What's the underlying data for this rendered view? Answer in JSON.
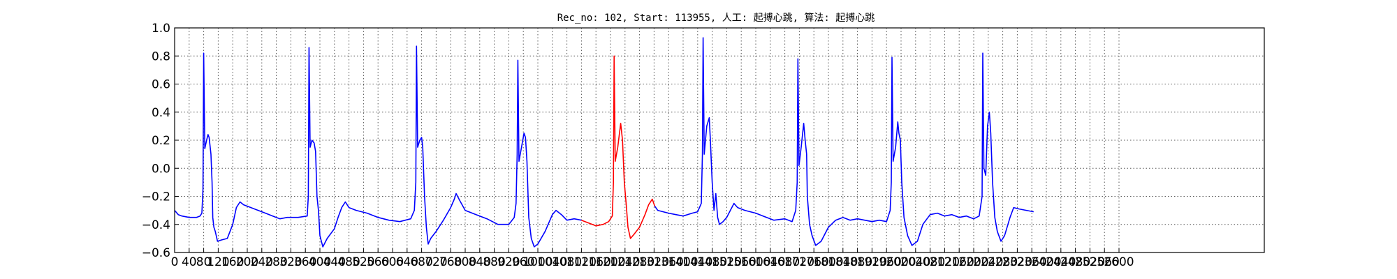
{
  "chart_data": {
    "type": "line",
    "title": "Rec_no: 102, Start: 113955, 人工: 起搏心跳, 算法: 起搏心跳",
    "xlabel": "",
    "ylabel": "",
    "xlim": [
      0,
      3000
    ],
    "ylim": [
      -0.6,
      1.0
    ],
    "grid": true,
    "yticks": [
      1.0,
      0.8,
      0.6,
      0.4,
      0.2,
      0.0,
      -0.2,
      -0.4,
      -0.6
    ],
    "ytick_labels": [
      "1.0",
      "0.8",
      "0.6",
      "0.4",
      "0.2",
      "0.0",
      "−0.2",
      "−0.4",
      "−0.6"
    ],
    "xticks": [
      0,
      40,
      80,
      120,
      160,
      200,
      240,
      280,
      320,
      360,
      400,
      440,
      480,
      520,
      560,
      600,
      640,
      680,
      720,
      760,
      800,
      840,
      880,
      920,
      960,
      1000,
      1040,
      1080,
      1120,
      1160,
      1200,
      1240,
      1280,
      1320,
      1360,
      1400,
      1440,
      1480,
      1520,
      1560,
      1600,
      1640,
      1680,
      1720,
      1760,
      1800,
      1840,
      1880,
      1920,
      1960,
      2000,
      2040,
      2080,
      2120,
      2160,
      2200,
      2240,
      2280,
      2320,
      2360,
      2400,
      2440,
      2480,
      2520,
      2560,
      2600
    ],
    "xtick_labels": [
      "0",
      "40",
      "80",
      "120",
      "160",
      "200",
      "240",
      "280",
      "320",
      "360",
      "400",
      "440",
      "480",
      "520",
      "560",
      "600",
      "640",
      "680",
      "720",
      "760",
      "800",
      "840",
      "880",
      "920",
      "960",
      "1000",
      "1040",
      "1080",
      "1120",
      "1160",
      "1200",
      "1240",
      "1280",
      "1320",
      "1360",
      "1400",
      "1440",
      "1480",
      "1520",
      "1560",
      "1600",
      "1640",
      "1680",
      "1720",
      "1760",
      "1800",
      "1840",
      "1880",
      "1920",
      "1960",
      "2000",
      "2040",
      "2080",
      "2120",
      "2160",
      "2200",
      "2240",
      "2280",
      "2320",
      "2360",
      "2400",
      "2440",
      "2480",
      "2520",
      "2560",
      "2600"
    ],
    "series": [
      {
        "color": "#0000ff",
        "points": [
          [
            0,
            -0.3
          ],
          [
            10,
            -0.33
          ],
          [
            20,
            -0.34
          ],
          [
            40,
            -0.35
          ],
          [
            60,
            -0.35
          ],
          [
            70,
            -0.34
          ],
          [
            75,
            -0.32
          ],
          [
            78,
            -0.15
          ],
          [
            80,
            0.82
          ],
          [
            83,
            0.14
          ],
          [
            88,
            0.2
          ],
          [
            92,
            0.24
          ],
          [
            95,
            0.22
          ],
          [
            100,
            0.1
          ],
          [
            103,
            -0.1
          ],
          [
            105,
            -0.35
          ],
          [
            108,
            -0.42
          ],
          [
            112,
            -0.45
          ],
          [
            118,
            -0.52
          ],
          [
            130,
            -0.51
          ],
          [
            145,
            -0.5
          ],
          [
            160,
            -0.4
          ],
          [
            170,
            -0.28
          ],
          [
            180,
            -0.24
          ],
          [
            190,
            -0.26
          ],
          [
            210,
            -0.28
          ],
          [
            230,
            -0.3
          ],
          [
            250,
            -0.32
          ],
          [
            270,
            -0.34
          ],
          [
            290,
            -0.36
          ],
          [
            310,
            -0.35
          ],
          [
            340,
            -0.35
          ],
          [
            365,
            -0.34
          ],
          [
            368,
            -0.2
          ],
          [
            370,
            0.86
          ],
          [
            373,
            0.15
          ],
          [
            378,
            0.2
          ],
          [
            384,
            0.18
          ],
          [
            388,
            0.12
          ],
          [
            392,
            -0.2
          ],
          [
            396,
            -0.3
          ],
          [
            400,
            -0.48
          ],
          [
            408,
            -0.56
          ],
          [
            420,
            -0.5
          ],
          [
            440,
            -0.43
          ],
          [
            450,
            -0.35
          ],
          [
            460,
            -0.28
          ],
          [
            470,
            -0.24
          ],
          [
            480,
            -0.28
          ],
          [
            500,
            -0.3
          ],
          [
            530,
            -0.32
          ],
          [
            560,
            -0.35
          ],
          [
            590,
            -0.37
          ],
          [
            620,
            -0.38
          ],
          [
            650,
            -0.36
          ],
          [
            660,
            -0.3
          ],
          [
            664,
            -0.1
          ],
          [
            666,
            0.87
          ],
          [
            669,
            0.15
          ],
          [
            675,
            0.2
          ],
          [
            680,
            0.22
          ],
          [
            683,
            0.15
          ],
          [
            688,
            -0.2
          ],
          [
            693,
            -0.42
          ],
          [
            698,
            -0.54
          ],
          [
            705,
            -0.5
          ],
          [
            720,
            -0.45
          ],
          [
            740,
            -0.37
          ],
          [
            760,
            -0.28
          ],
          [
            770,
            -0.22
          ],
          [
            775,
            -0.18
          ],
          [
            785,
            -0.23
          ],
          [
            800,
            -0.3
          ],
          [
            830,
            -0.33
          ],
          [
            860,
            -0.36
          ],
          [
            890,
            -0.4
          ],
          [
            920,
            -0.4
          ],
          [
            935,
            -0.35
          ],
          [
            940,
            -0.25
          ],
          [
            943,
            0.1
          ],
          [
            945,
            0.77
          ],
          [
            948,
            0.05
          ],
          [
            955,
            0.15
          ],
          [
            962,
            0.25
          ],
          [
            966,
            0.22
          ],
          [
            970,
            0.05
          ],
          [
            975,
            -0.35
          ],
          [
            982,
            -0.5
          ],
          [
            990,
            -0.56
          ],
          [
            1000,
            -0.54
          ],
          [
            1020,
            -0.45
          ],
          [
            1040,
            -0.33
          ],
          [
            1050,
            -0.3
          ],
          [
            1065,
            -0.33
          ],
          [
            1080,
            -0.37
          ],
          [
            1100,
            -0.36
          ],
          [
            1120,
            -0.37
          ]
        ]
      },
      {
        "color": "#ff0000",
        "points": [
          [
            1120,
            -0.37
          ],
          [
            1140,
            -0.39
          ],
          [
            1160,
            -0.41
          ],
          [
            1180,
            -0.4
          ],
          [
            1195,
            -0.38
          ],
          [
            1200,
            -0.36
          ],
          [
            1205,
            -0.34
          ],
          [
            1208,
            -0.1
          ],
          [
            1210,
            0.8
          ],
          [
            1213,
            0.05
          ],
          [
            1220,
            0.15
          ],
          [
            1228,
            0.32
          ],
          [
            1233,
            0.2
          ],
          [
            1238,
            -0.1
          ],
          [
            1243,
            -0.25
          ],
          [
            1248,
            -0.42
          ],
          [
            1255,
            -0.5
          ],
          [
            1265,
            -0.47
          ],
          [
            1280,
            -0.42
          ],
          [
            1295,
            -0.33
          ],
          [
            1305,
            -0.26
          ],
          [
            1315,
            -0.22
          ],
          [
            1322,
            -0.27
          ]
        ]
      },
      {
        "color": "#0000ff",
        "points": [
          [
            1322,
            -0.27
          ],
          [
            1330,
            -0.3
          ],
          [
            1345,
            -0.31
          ],
          [
            1360,
            -0.32
          ],
          [
            1380,
            -0.33
          ],
          [
            1400,
            -0.34
          ],
          [
            1425,
            -0.32
          ],
          [
            1440,
            -0.31
          ],
          [
            1450,
            -0.25
          ],
          [
            1453,
            0.1
          ],
          [
            1455,
            0.93
          ],
          [
            1458,
            0.1
          ],
          [
            1465,
            0.3
          ],
          [
            1472,
            0.36
          ],
          [
            1475,
            0.2
          ],
          [
            1480,
            -0.1
          ],
          [
            1485,
            -0.3
          ],
          [
            1490,
            -0.18
          ],
          [
            1495,
            -0.35
          ],
          [
            1500,
            -0.4
          ],
          [
            1510,
            -0.38
          ],
          [
            1520,
            -0.35
          ],
          [
            1530,
            -0.3
          ],
          [
            1540,
            -0.25
          ],
          [
            1550,
            -0.28
          ],
          [
            1570,
            -0.3
          ],
          [
            1600,
            -0.32
          ],
          [
            1620,
            -0.34
          ],
          [
            1650,
            -0.37
          ],
          [
            1680,
            -0.36
          ],
          [
            1700,
            -0.38
          ],
          [
            1710,
            -0.3
          ],
          [
            1714,
            -0.1
          ],
          [
            1716,
            0.78
          ],
          [
            1719,
            0.02
          ],
          [
            1725,
            0.15
          ],
          [
            1732,
            0.32
          ],
          [
            1736,
            0.2
          ],
          [
            1740,
            0.1
          ],
          [
            1742,
            -0.2
          ],
          [
            1748,
            -0.4
          ],
          [
            1755,
            -0.48
          ],
          [
            1765,
            -0.55
          ],
          [
            1780,
            -0.52
          ],
          [
            1800,
            -0.42
          ],
          [
            1820,
            -0.37
          ],
          [
            1840,
            -0.35
          ],
          [
            1860,
            -0.37
          ],
          [
            1880,
            -0.36
          ],
          [
            1900,
            -0.37
          ],
          [
            1920,
            -0.38
          ],
          [
            1940,
            -0.37
          ],
          [
            1960,
            -0.38
          ],
          [
            1970,
            -0.3
          ],
          [
            1973,
            -0.1
          ],
          [
            1975,
            0.79
          ],
          [
            1978,
            0.05
          ],
          [
            1985,
            0.15
          ],
          [
            1991,
            0.33
          ],
          [
            1994,
            0.25
          ],
          [
            1998,
            0.2
          ],
          [
            2002,
            -0.1
          ],
          [
            2008,
            -0.35
          ],
          [
            2018,
            -0.48
          ],
          [
            2030,
            -0.55
          ],
          [
            2045,
            -0.52
          ],
          [
            2060,
            -0.4
          ],
          [
            2080,
            -0.33
          ],
          [
            2100,
            -0.32
          ],
          [
            2120,
            -0.34
          ],
          [
            2140,
            -0.33
          ],
          [
            2160,
            -0.35
          ],
          [
            2180,
            -0.34
          ],
          [
            2200,
            -0.36
          ],
          [
            2215,
            -0.34
          ],
          [
            2223,
            -0.2
          ],
          [
            2225,
            0.82
          ],
          [
            2228,
            0.0
          ],
          [
            2233,
            -0.05
          ],
          [
            2238,
            0.3
          ],
          [
            2243,
            0.4
          ],
          [
            2247,
            0.25
          ],
          [
            2252,
            -0.1
          ],
          [
            2258,
            -0.35
          ],
          [
            2265,
            -0.45
          ],
          [
            2275,
            -0.52
          ],
          [
            2285,
            -0.48
          ],
          [
            2300,
            -0.35
          ],
          [
            2310,
            -0.28
          ],
          [
            2325,
            -0.29
          ],
          [
            2345,
            -0.3
          ],
          [
            2365,
            -0.31
          ]
        ]
      }
    ]
  }
}
